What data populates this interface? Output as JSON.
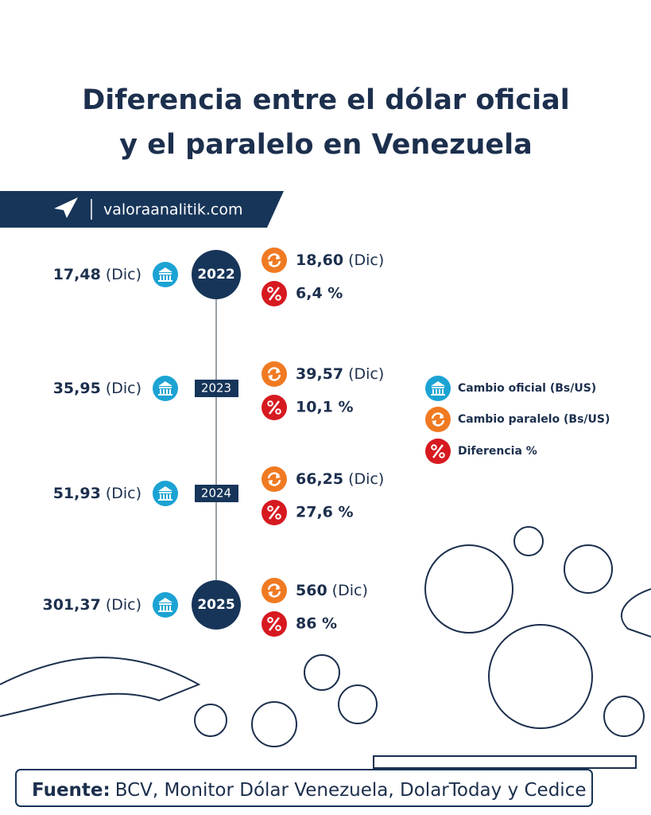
{
  "header": {
    "title_line1": "Diferencia entre el dólar oficial",
    "title_line2": "y el paralelo en Venezuela"
  },
  "brand": {
    "site": "valoraanalitik.com"
  },
  "timeline": [
    {
      "year": "2022",
      "official": "17,48",
      "official_period": "(Dic)",
      "parallel": "18,60",
      "parallel_period": "(Dic)",
      "difference": "6,4 %"
    },
    {
      "year": "2023",
      "official": "35,95",
      "official_period": "(Dic)",
      "parallel": "39,57",
      "parallel_period": "(Dic)",
      "difference": "10,1 %"
    },
    {
      "year": "2024",
      "official": "51,93",
      "official_period": "(Dic)",
      "parallel": "66,25",
      "parallel_period": "(Dic)",
      "difference": "27,6 %"
    },
    {
      "year": "2025",
      "official": "301,37",
      "official_period": "(Dic)",
      "parallel": "560",
      "parallel_period": "(Dic)",
      "difference": "86 %"
    }
  ],
  "legend": {
    "official": "Cambio oficial (Bs/US)",
    "parallel": "Cambio paralelo (Bs/US)",
    "difference": "Diferencia %"
  },
  "footer": {
    "label": "Fuente:",
    "text": "BCV, Monitor Dólar Venezuela, DolarToday y Cedice"
  }
}
